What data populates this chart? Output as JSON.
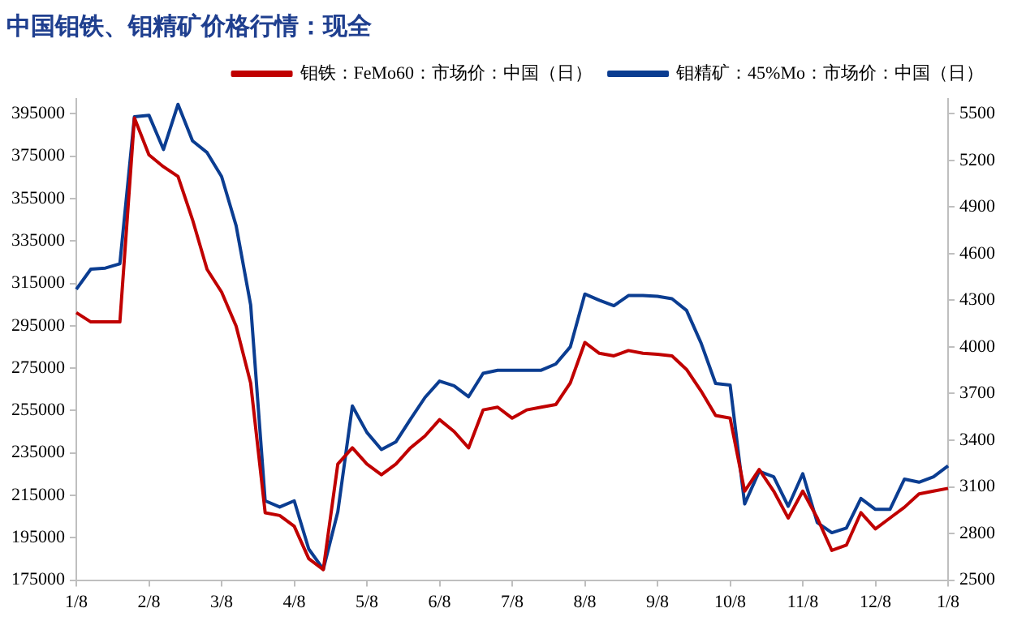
{
  "chart_data": {
    "type": "line",
    "title": "中国钼铁、钼精矿价格行情：现全",
    "categories": [
      "1/8",
      null,
      null,
      null,
      null,
      "2/8",
      null,
      null,
      null,
      null,
      "3/8",
      null,
      null,
      null,
      null,
      "4/8",
      null,
      null,
      null,
      null,
      "5/8",
      null,
      null,
      null,
      null,
      "6/8",
      null,
      null,
      null,
      null,
      "7/8",
      null,
      null,
      null,
      null,
      "8/8",
      null,
      null,
      null,
      null,
      "9/8",
      null,
      null,
      null,
      null,
      "10/8",
      null,
      null,
      null,
      null,
      "11/8",
      null,
      null,
      null,
      null,
      "12/8",
      null,
      null,
      null,
      null,
      "1/8"
    ],
    "series": [
      {
        "name": "钼铁：FeMo60：市场价：中国（日）",
        "color": "#c00000",
        "values": [
          301200,
          296800,
          296800,
          296800,
          393000,
          375600,
          370000,
          365400,
          345000,
          321600,
          310900,
          294800,
          268000,
          206800,
          205500,
          200400,
          185100,
          180000,
          229800,
          237400,
          229800,
          224700,
          229800,
          237400,
          243000,
          250700,
          245100,
          237400,
          255300,
          256600,
          251400,
          255300,
          256600,
          257800,
          268000,
          287100,
          282000,
          280800,
          283300,
          282000,
          281500,
          280800,
          274400,
          264200,
          252700,
          251400,
          217000,
          227200,
          217000,
          204300,
          217000,
          204300,
          189000,
          191500,
          206800,
          199200,
          204300,
          209400,
          215700,
          217000,
          218300
        ]
      },
      {
        "name": "钼精矿：45%Mo：市场价：中国（日）",
        "color": "#0b3d91",
        "axis": "y2",
        "values": [
          4370,
          4500,
          4507,
          4535,
          5480,
          5490,
          5270,
          5560,
          5325,
          5250,
          5096,
          4780,
          4270,
          3010,
          2970,
          3010,
          2700,
          2570,
          2940,
          3620,
          3450,
          3340,
          3390,
          3535,
          3675,
          3780,
          3750,
          3680,
          3830,
          3850,
          3850,
          3850,
          3850,
          3890,
          4000,
          4340,
          4300,
          4265,
          4330,
          4330,
          4325,
          4310,
          4235,
          4025,
          3765,
          3755,
          2990,
          3200,
          3165,
          2975,
          3185,
          2870,
          2805,
          2835,
          3025,
          2955,
          2955,
          3150,
          3130,
          3165,
          3235
        ]
      }
    ],
    "ylim": [
      175000,
      402000
    ],
    "yticks": [
      175000,
      195000,
      215000,
      235000,
      255000,
      275000,
      295000,
      315000,
      335000,
      355000,
      375000,
      395000
    ],
    "y2lim": [
      2500,
      5595
    ],
    "y2ticks": [
      2500,
      2800,
      3100,
      3400,
      3700,
      4000,
      4300,
      4600,
      4900,
      5200,
      5500
    ],
    "grid": false,
    "legend": "top right"
  }
}
